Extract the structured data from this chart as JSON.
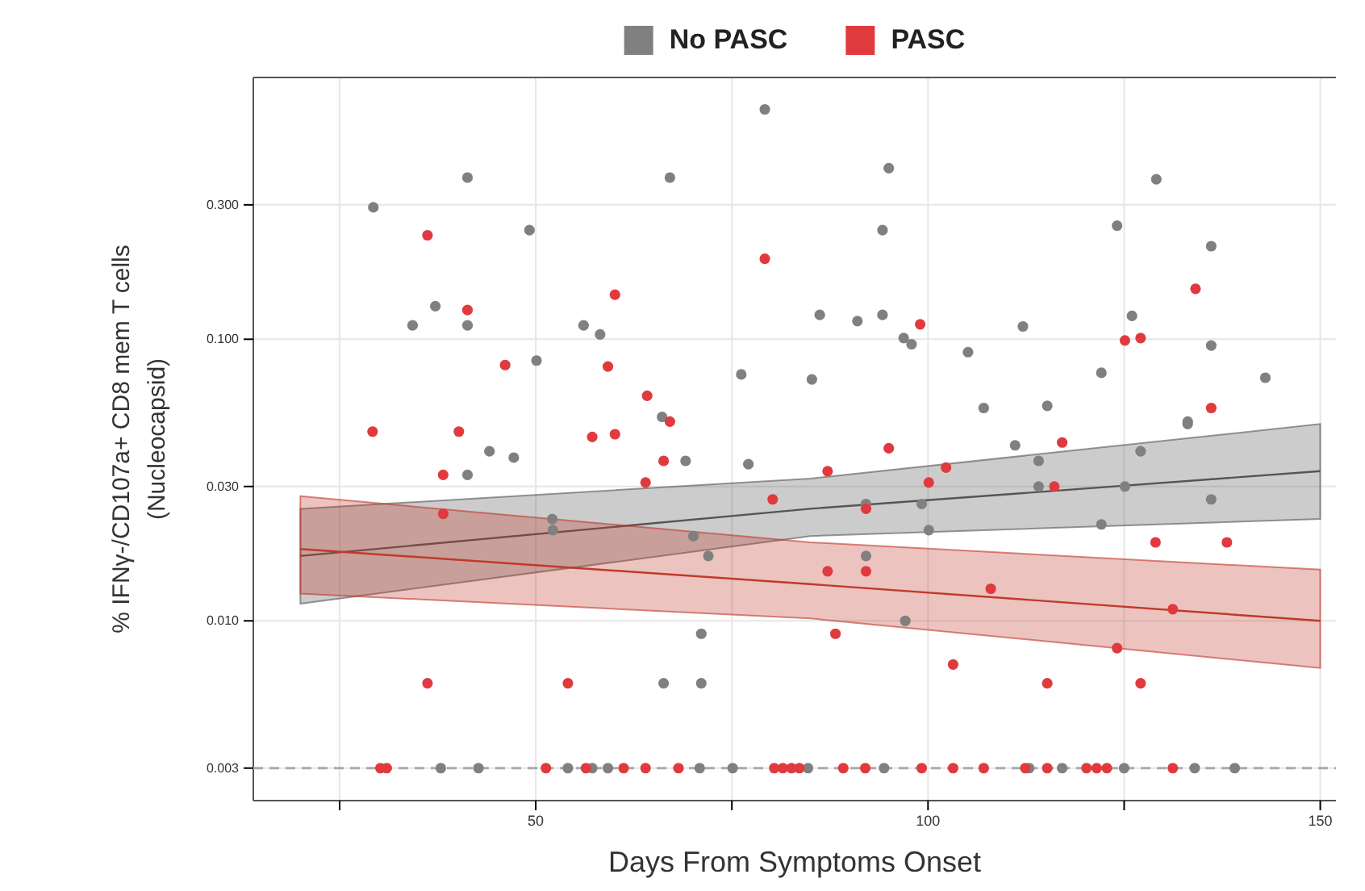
{
  "chart_data": {
    "type": "scatter",
    "xlabel": "Days From Symptoms Onset",
    "ylabel": "% IFNγ-/CD107a+  CD8 mem T cells\n(Nucleocapsid)",
    "log": "y",
    "grid": true,
    "legend": "top",
    "marker": "circle",
    "xlim": [
      14,
      152
    ],
    "xticks": [
      {
        "value": 25,
        "label": null
      },
      50,
      {
        "value": 75,
        "label": null
      },
      100,
      {
        "value": 125,
        "label": null
      },
      150
    ],
    "ylim": [
      0.0023,
      0.85
    ],
    "yticks": [
      {
        "value": 0.003,
        "label": "0.003"
      },
      {
        "value": 0.01,
        "label": "0.010"
      },
      {
        "value": 0.03,
        "label": "0.030"
      },
      {
        "value": 0.1,
        "label": "0.100"
      },
      {
        "value": 0.3,
        "label": "0.300"
      }
    ],
    "ref_lines": [
      {
        "axis": "y",
        "value": 0.003,
        "label": null,
        "color": "#aaaaaa",
        "line_style": "dashed"
      }
    ],
    "series": [
      {
        "type": "line",
        "marker": "none",
        "color": "#555555",
        "x": [
          20,
          85,
          150
        ],
        "values": [
          0.017,
          0.025,
          0.034
        ],
        "lower": [
          0.0115,
          0.02,
          0.023
        ],
        "upper": [
          0.025,
          0.032,
          0.05
        ]
      },
      {
        "type": "line",
        "marker": "none",
        "color": "#c0392b",
        "x": [
          20,
          85,
          150
        ],
        "values": [
          0.018,
          0.0135,
          0.01
        ],
        "lower": [
          0.0125,
          0.0102,
          0.0068
        ],
        "upper": [
          0.0277,
          0.019,
          0.0152
        ]
      },
      {
        "name": "No PASC",
        "color": "#808080",
        "x": [
          79.2,
          41.3,
          67.1,
          29.3,
          49.2,
          37.2,
          34.3,
          41.3,
          56.1,
          58.2,
          50.1,
          76.2,
          66.1,
          44.1,
          47.2,
          41.3,
          69.1,
          77.1,
          52.1,
          52.2,
          70.1,
          72,
          71.1,
          66.3,
          71.1,
          95,
          94.2,
          129.1,
          124.1,
          136.1,
          86.2,
          91,
          94.2,
          126,
          112.1,
          96.9,
          97.9,
          136.1,
          105.1,
          85.2,
          122.1,
          143,
          107.1,
          115.2,
          133.1,
          111.1,
          114.1,
          114.1,
          127.1,
          133.1,
          125.1,
          136.1,
          99.2,
          100.1,
          122.1,
          92.1,
          92.1,
          97.1,
          37.9,
          42.7,
          54.1,
          57.2,
          59.2,
          70.9,
          75.1,
          84.7,
          94.4,
          112.9,
          117.1,
          125,
          134,
          139.1
        ],
        "values": [
          0.655,
          0.375,
          0.375,
          0.294,
          0.244,
          0.131,
          0.112,
          0.112,
          0.112,
          0.104,
          0.084,
          0.075,
          0.053,
          0.04,
          0.038,
          0.033,
          0.037,
          0.036,
          0.023,
          0.021,
          0.02,
          0.017,
          0.009,
          0.006,
          0.006,
          0.405,
          0.244,
          0.37,
          0.253,
          0.214,
          0.122,
          0.116,
          0.122,
          0.121,
          0.111,
          0.101,
          0.096,
          0.095,
          0.09,
          0.072,
          0.076,
          0.073,
          0.057,
          0.058,
          0.051,
          0.042,
          0.037,
          0.03,
          0.04,
          0.05,
          0.03,
          0.027,
          0.026,
          0.021,
          0.022,
          0.017,
          0.026,
          0.01,
          0.003,
          0.003,
          0.003,
          0.003,
          0.003,
          0.003,
          0.003,
          0.003,
          0.003,
          0.003,
          0.003,
          0.003,
          0.003,
          0.003
        ]
      },
      {
        "name": "PASC",
        "color": "#e03a3e",
        "x": [
          36.2,
          79.2,
          60.1,
          41.3,
          46.1,
          59.2,
          64.2,
          67.1,
          29.2,
          40.2,
          57.2,
          60.1,
          66.3,
          64,
          38.2,
          80.2,
          38.2,
          36.2,
          54.1,
          99,
          125.1,
          127.1,
          134.1,
          136.1,
          95,
          117.1,
          87.2,
          102.3,
          100.1,
          116.1,
          92.1,
          129,
          138.1,
          87.2,
          92.1,
          88.2,
          103.2,
          115.2,
          127.1,
          124.1,
          131.2,
          108,
          30.2,
          31,
          51.3,
          56.4,
          61.2,
          64,
          68.2,
          80.4,
          81.5,
          82.6,
          83.6,
          89.2,
          92,
          99.2,
          103.2,
          107.1,
          112.4,
          115.2,
          120.2,
          121.5,
          122.8,
          131.2
        ],
        "values": [
          0.234,
          0.193,
          0.144,
          0.127,
          0.081,
          0.08,
          0.063,
          0.051,
          0.047,
          0.047,
          0.045,
          0.046,
          0.037,
          0.031,
          0.033,
          0.027,
          0.024,
          0.006,
          0.006,
          0.113,
          0.099,
          0.101,
          0.151,
          0.057,
          0.041,
          0.043,
          0.034,
          0.035,
          0.031,
          0.03,
          0.025,
          0.019,
          0.019,
          0.015,
          0.015,
          0.009,
          0.007,
          0.006,
          0.006,
          0.008,
          0.011,
          0.013,
          0.003,
          0.003,
          0.003,
          0.003,
          0.003,
          0.003,
          0.003,
          0.003,
          0.003,
          0.003,
          0.003,
          0.003,
          0.003,
          0.003,
          0.003,
          0.003,
          0.003,
          0.003,
          0.003,
          0.003,
          0.003,
          0.003
        ]
      }
    ]
  }
}
